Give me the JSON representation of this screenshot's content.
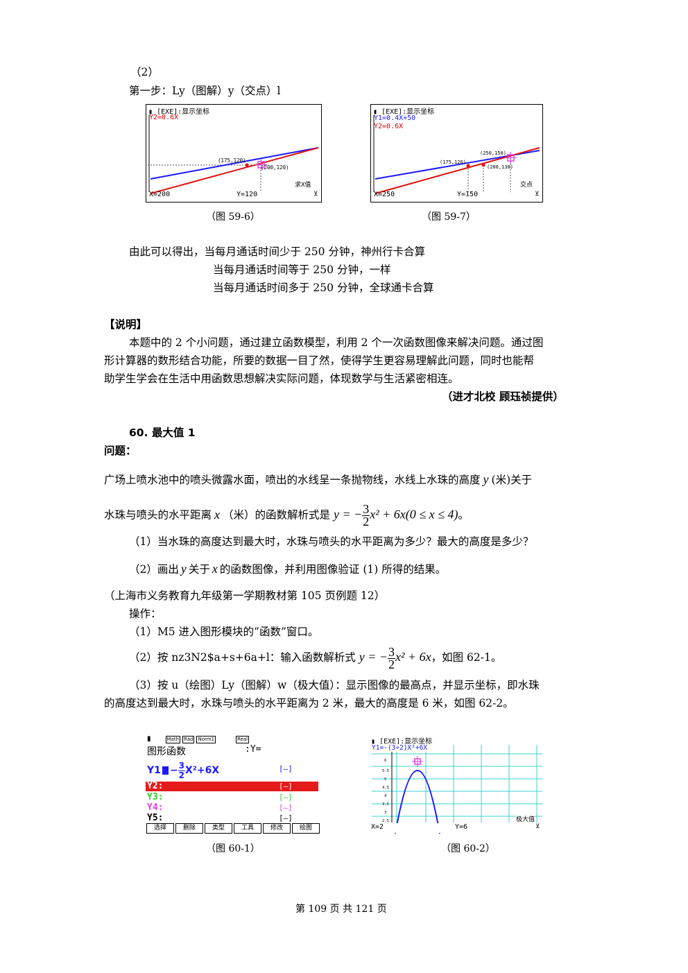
{
  "top": {
    "part_label": "（2）",
    "step1": "第一步：Ly（图解）y（交点）l"
  },
  "fig59_6": {
    "header": "[EXE]:显示坐标",
    "fn": "Y2=0.6X",
    "pt_a": "(175,120)",
    "pt_b": "(200,120)",
    "mode": "求X值",
    "x_readout": "X=200",
    "y_readout": "Y=120",
    "caption": "（图 59-6）"
  },
  "fig59_7": {
    "header": "[EXE]:显示坐标",
    "fn1": "Y1=0.4X+50",
    "fn2": "Y2=0.6X",
    "pt_a": "(250,150)",
    "pt_b": "(175,120)",
    "pt_c": "(200,130)",
    "mode": "交点",
    "x_readout": "X=250",
    "y_readout": "Y=150",
    "caption": "（图 59-7）"
  },
  "conclusion": {
    "line1": "由此可以得出，当每月通话时间少于 250 分钟，神州行卡合算",
    "line2": "当每月通话时间等于 250 分钟，一样",
    "line3": "当每月通话时间多于 250 分钟，全球通卡合算"
  },
  "explain": {
    "heading": "【说明】",
    "p1": "本题中的 2 个小问题，通过建立函数模型，利用 2 个一次函数图像来解决问题。通过图",
    "p2": "形计算器的数形结合功能，所要的数据一目了然，使得学生更容易理解此问题，同时也能帮",
    "p3": "助学生学会在生活中用函数思想解决实际问题，体现数学与生活紧密相连。",
    "credit": "（进才北校  顾珏祯提供）"
  },
  "section60": {
    "title": "60. 最大值 1",
    "problem_label": "问题：",
    "line1a": "广场上喷水池中的喷头微露水面，喷出的水线呈一条抛物线，水线上水珠的高度",
    "var_y": "y",
    "line1b": "(米)关于",
    "line2a": "水珠与喷头的水平距离",
    "var_x": "x",
    "line2b": "（米）的函数解析式是",
    "formula_lhs": "y = −",
    "frac_num": "3",
    "frac_den": "2",
    "formula_rhs": "x² + 6x(0 ≤ x ≤ 4)",
    "period": "。",
    "q1": "（1）当水珠的高度达到最大时，水珠与喷头的水平距离为多少？最大的高度是多少？",
    "q2a": "（2）画出",
    "q2b": "关于",
    "q2c": "的函数图像，并利用图像验证 (1) 所得的结果。",
    "source": "（上海市义务教育九年级第一学期教材第 105 页例题 12）",
    "op_label": "操作：",
    "op1": "（1）M5 进入图形模块的“函数”窗口。",
    "op2a": "（2）按 nz3N2$a+s+6a+l：输入函数解析式",
    "op2_formula_lhs": "y = −",
    "op2_formula_rhs": "x² + 6x",
    "op2b": "，如图 62-1。",
    "op3a": "（3）按 u（绘图）Ly（图解）w（极大值）：显示图像的最高点，并显示坐标，即水珠",
    "op3b": "的高度达到最大时，水珠与喷头的水平距离为 2 米，最大的高度是 6 米，如图 62-2。"
  },
  "fig60_1": {
    "status": [
      "Math",
      "Rad",
      "Norm1",
      "Real"
    ],
    "title_left": "图形函数",
    "title_right": ":Y=",
    "y1_label": "Y1",
    "y1_expr_a": "−",
    "y1_expr_b": "X²+6X",
    "rows": [
      "Y2:",
      "Y3:",
      "Y4:",
      "Y5:"
    ],
    "fkeys": [
      "选择",
      "删除",
      "类型",
      "工具",
      "修改",
      "绘图"
    ],
    "caption": "（图 60-1）"
  },
  "fig60_2": {
    "header": "[EXE]:显示坐标",
    "fn": "Y1=-(3÷2)X²+6X",
    "ticks": [
      "6",
      "5.5",
      "5",
      "4.5",
      "4",
      "3.5",
      "3",
      "2.5"
    ],
    "mode": "极大值",
    "x_readout": "X=2",
    "y_readout": "Y=6",
    "caption": "（图 60-2）"
  },
  "footer": {
    "page": "第 109 页 共 121 页"
  },
  "colors": {
    "blue_line": "#1a1aff",
    "red_line": "#e01010",
    "magenta_marker": "#e040e0",
    "cyan_grid": "#38d0d0",
    "red_bar": "#e41a1a"
  }
}
